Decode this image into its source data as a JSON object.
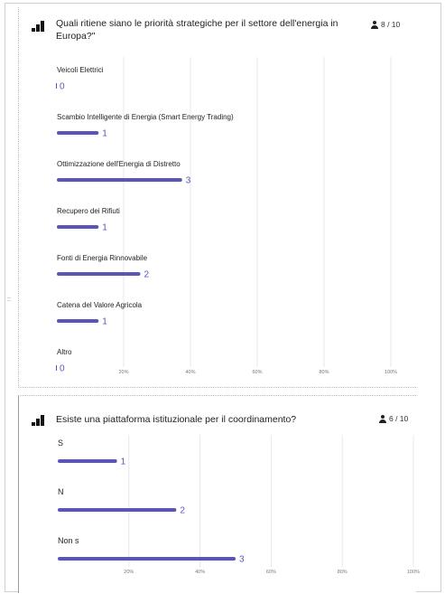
{
  "accent_color": "#5b55b8",
  "grid_color": "#e8e8ee",
  "side_handle": "::",
  "questions": [
    {
      "title_line1": "Quali ritiene siano le priorità strategiche per il settore dell'energia in",
      "title_line2": "Europa?\"",
      "count": "8 / 10"
    },
    {
      "title_line1": "Esiste una piattaforma istituzionale per il coordinamento?",
      "count": "6 / 10"
    }
  ],
  "chart_data": [
    {
      "type": "bar",
      "orientation": "horizontal",
      "categories": [
        "Veicoli Elettrici",
        "Scambio Intelligente di Energia (Smart Energy Trading)",
        "Ottimizzazione dell'Energia di Distretto",
        "Recupero dei Rifiuti",
        "Fonti di Energia Rinnovabile",
        "Catena del Valore Agricola",
        "Altro"
      ],
      "values": [
        0,
        1,
        3,
        1,
        2,
        1,
        0
      ],
      "tick_labels": [
        "20%",
        "40%",
        "60%",
        "80%",
        "100%"
      ],
      "xlim_percent": [
        0,
        100
      ],
      "total": 8,
      "grid": true
    },
    {
      "type": "bar",
      "orientation": "horizontal",
      "categories": [
        "S",
        "N",
        "Non s"
      ],
      "values": [
        1,
        2,
        3
      ],
      "tick_labels": [
        "20%",
        "40%",
        "60%",
        "80%",
        "100%"
      ],
      "xlim_percent": [
        0,
        100
      ],
      "total": 6,
      "grid": true
    }
  ]
}
